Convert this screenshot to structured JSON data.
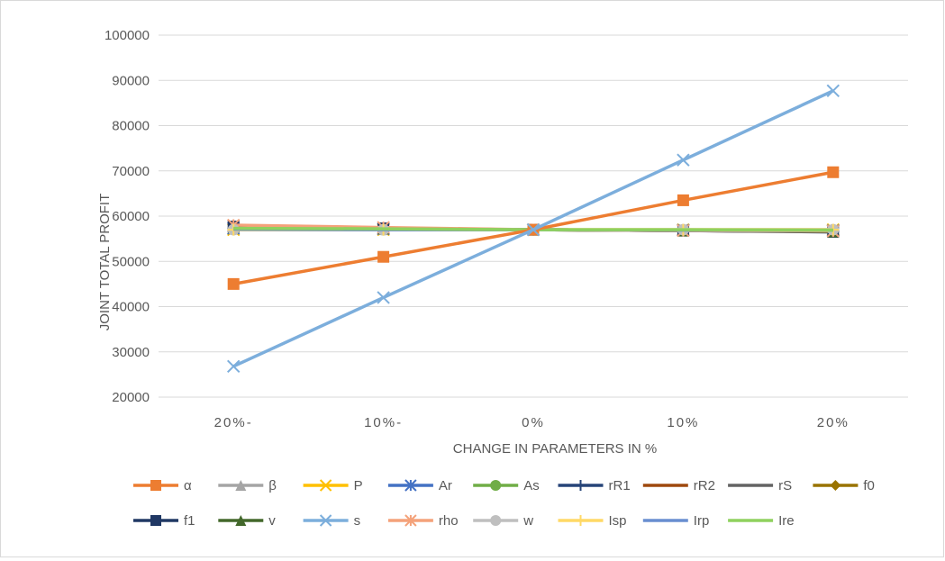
{
  "chart_data": {
    "type": "line",
    "title": "",
    "xlabel": "CHANGE IN PARAMETERS IN %",
    "ylabel": "JOINT TOTAL PROFIT",
    "categories": [
      "20%-",
      "10%-",
      "0%",
      "10%",
      "20%"
    ],
    "ylim": [
      20000,
      100000
    ],
    "yticks": [
      20000,
      30000,
      40000,
      50000,
      60000,
      70000,
      80000,
      90000,
      100000
    ],
    "grid": "horizontal",
    "legend": "bottom",
    "series": [
      {
        "name": "α",
        "values": [
          45000,
          51000,
          57000,
          63500,
          69700
        ],
        "color": "#ed7d31",
        "marker": "square"
      },
      {
        "name": "β",
        "values": [
          57200,
          57100,
          57000,
          56900,
          56800
        ],
        "color": "#a5a5a5",
        "marker": "triangle"
      },
      {
        "name": "P",
        "values": [
          57000,
          57000,
          57000,
          57000,
          57000
        ],
        "color": "#ffc000",
        "marker": "x"
      },
      {
        "name": "Ar",
        "values": [
          57300,
          57200,
          57000,
          56900,
          56800
        ],
        "color": "#4472c4",
        "marker": "asterisk"
      },
      {
        "name": "As",
        "values": [
          57100,
          57000,
          57000,
          56900,
          56900
        ],
        "color": "#70ad47",
        "marker": "circle"
      },
      {
        "name": "rR1",
        "values": [
          57200,
          57100,
          57000,
          56900,
          56800
        ],
        "color": "#264478",
        "marker": "plus"
      },
      {
        "name": "rR2",
        "values": [
          57200,
          57100,
          57000,
          56900,
          56800
        ],
        "color": "#9e480e",
        "marker": "none"
      },
      {
        "name": "rS",
        "values": [
          57200,
          57100,
          57000,
          56900,
          56800
        ],
        "color": "#636363",
        "marker": "none"
      },
      {
        "name": "f0",
        "values": [
          57400,
          57200,
          57000,
          56800,
          56600
        ],
        "color": "#997300",
        "marker": "diamond"
      },
      {
        "name": "f1",
        "values": [
          57700,
          57300,
          57000,
          56800,
          56500
        ],
        "color": "#203864",
        "marker": "square"
      },
      {
        "name": "v",
        "values": [
          57500,
          57300,
          57000,
          56800,
          56600
        ],
        "color": "#43682b",
        "marker": "triangle"
      },
      {
        "name": "s",
        "values": [
          26800,
          42000,
          57000,
          72400,
          87700
        ],
        "color": "#7caedc",
        "marker": "x"
      },
      {
        "name": "rho",
        "values": [
          58000,
          57500,
          57000,
          56800,
          56700
        ],
        "color": "#f4a27a",
        "marker": "asterisk"
      },
      {
        "name": "w",
        "values": [
          57000,
          57000,
          57000,
          57000,
          57000
        ],
        "color": "#bfbfbf",
        "marker": "circle"
      },
      {
        "name": "Isp",
        "values": [
          57000,
          57000,
          57000,
          57000,
          57000
        ],
        "color": "#ffd966",
        "marker": "plus"
      },
      {
        "name": "Irp",
        "values": [
          57100,
          57000,
          57000,
          56900,
          56900
        ],
        "color": "#698ed0",
        "marker": "none"
      },
      {
        "name": "Ire",
        "values": [
          57300,
          57200,
          57000,
          57000,
          56900
        ],
        "color": "#8fd15e",
        "marker": "none"
      }
    ]
  }
}
